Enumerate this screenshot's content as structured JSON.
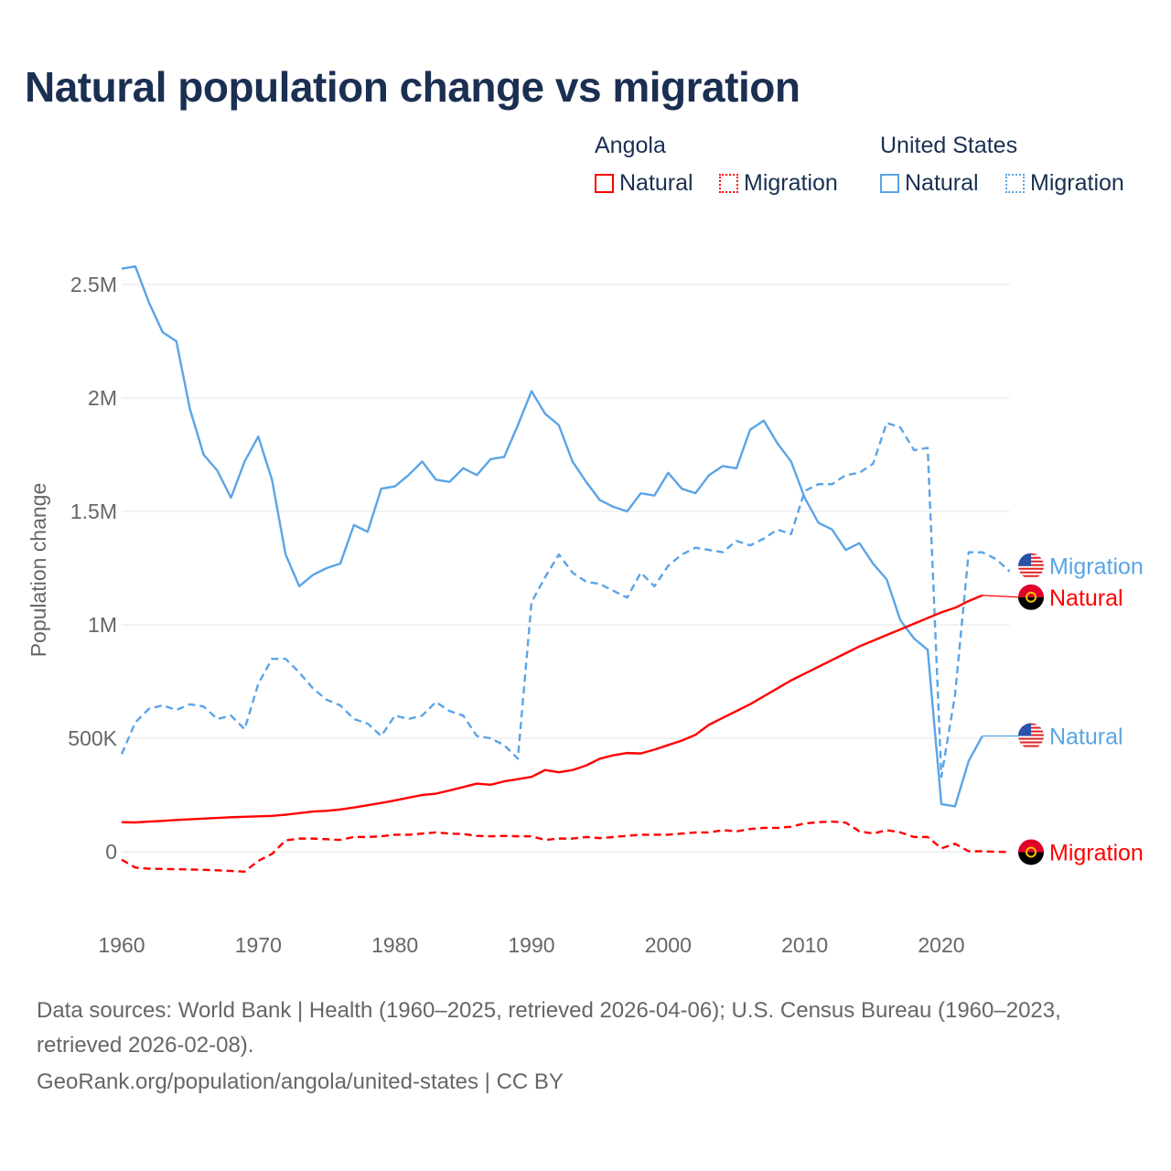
{
  "chart_data": {
    "type": "line",
    "title": "Natural population change vs migration",
    "xlabel": "",
    "ylabel": "Population change",
    "xlim": [
      1960,
      2025
    ],
    "ylim": [
      -0.15,
      2.6
    ],
    "y_unit": "millions",
    "grid": true,
    "legend_placement": "top-right",
    "x_ticks": [
      1960,
      1970,
      1980,
      1990,
      2000,
      2010,
      2020
    ],
    "x_tick_labels": [
      "1960",
      "1970",
      "1980",
      "1990",
      "2000",
      "2010",
      "2020"
    ],
    "y_ticks": [
      0,
      0.5,
      1,
      1.5,
      2,
      2.5
    ],
    "y_tick_labels": [
      "0",
      "500K",
      "1M",
      "1.5M",
      "2M",
      "2.5M"
    ],
    "legend": {
      "groups": [
        {
          "name": "Angola",
          "items": [
            "Natural",
            "Migration"
          ]
        },
        {
          "name": "United States",
          "items": [
            "Natural",
            "Migration"
          ]
        }
      ]
    },
    "series": [
      {
        "name": "United States Natural",
        "country": "United States",
        "kind": "Natural",
        "label": "Natural",
        "color": "#5ba4e6",
        "dashed": false,
        "flag": "us-flag",
        "start": 1960,
        "values": [
          2.57,
          2.58,
          2.42,
          2.29,
          2.25,
          1.95,
          1.75,
          1.68,
          1.56,
          1.72,
          1.83,
          1.64,
          1.31,
          1.17,
          1.22,
          1.25,
          1.27,
          1.44,
          1.41,
          1.6,
          1.61,
          1.66,
          1.72,
          1.64,
          1.63,
          1.69,
          1.66,
          1.73,
          1.74,
          1.88,
          2.03,
          1.93,
          1.88,
          1.72,
          1.63,
          1.55,
          1.52,
          1.5,
          1.58,
          1.57,
          1.67,
          1.6,
          1.58,
          1.66,
          1.7,
          1.69,
          1.86,
          1.9,
          1.8,
          1.72,
          1.56,
          1.45,
          1.42,
          1.33,
          1.36,
          1.27,
          1.2,
          1.02,
          0.94,
          0.89,
          0.21,
          0.2,
          0.4,
          0.51
        ]
      },
      {
        "name": "United States Migration",
        "country": "United States",
        "kind": "Migration",
        "label": "Migration",
        "color": "#5ba4e6",
        "dashed": true,
        "flag": "us-flag",
        "start": 1960,
        "values": [
          0.43,
          0.57,
          0.63,
          0.645,
          0.625,
          0.65,
          0.64,
          0.585,
          0.6,
          0.54,
          0.74,
          0.85,
          0.85,
          0.79,
          0.72,
          0.67,
          0.645,
          0.585,
          0.565,
          0.51,
          0.6,
          0.585,
          0.6,
          0.66,
          0.62,
          0.6,
          0.51,
          0.5,
          0.47,
          0.41,
          1.1,
          1.21,
          1.31,
          1.23,
          1.19,
          1.18,
          1.15,
          1.12,
          1.23,
          1.17,
          1.26,
          1.31,
          1.34,
          1.33,
          1.32,
          1.37,
          1.35,
          1.38,
          1.42,
          1.4,
          1.59,
          1.62,
          1.62,
          1.66,
          1.67,
          1.71,
          1.89,
          1.87,
          1.77,
          1.78,
          0.33,
          0.69,
          1.32,
          1.32,
          1.29,
          1.235
        ]
      },
      {
        "name": "Angola Natural",
        "country": "Angola",
        "kind": "Natural",
        "label": "Natural",
        "color": "#ff0000",
        "dashed": false,
        "flag": "angola-flag",
        "start": 1960,
        "values": [
          0.13,
          0.129,
          0.133,
          0.136,
          0.14,
          0.143,
          0.146,
          0.149,
          0.152,
          0.154,
          0.156,
          0.158,
          0.163,
          0.17,
          0.177,
          0.18,
          0.186,
          0.195,
          0.205,
          0.215,
          0.226,
          0.238,
          0.25,
          0.256,
          0.27,
          0.285,
          0.3,
          0.295,
          0.31,
          0.32,
          0.33,
          0.36,
          0.35,
          0.36,
          0.38,
          0.41,
          0.425,
          0.435,
          0.433,
          0.45,
          0.47,
          0.49,
          0.515,
          0.56,
          0.59,
          0.62,
          0.65,
          0.685,
          0.72,
          0.755,
          0.785,
          0.815,
          0.845,
          0.875,
          0.905,
          0.93,
          0.955,
          0.98,
          1.005,
          1.03,
          1.055,
          1.075,
          1.105,
          1.13
        ]
      },
      {
        "name": "Angola Migration",
        "country": "Angola",
        "kind": "Migration",
        "label": "Migration",
        "color": "#ff0000",
        "dashed": true,
        "flag": "angola-flag",
        "start": 1960,
        "values": [
          -0.035,
          -0.07,
          -0.075,
          -0.076,
          -0.077,
          -0.078,
          -0.08,
          -0.082,
          -0.085,
          -0.088,
          -0.04,
          -0.01,
          0.05,
          0.058,
          0.058,
          0.055,
          0.052,
          0.065,
          0.065,
          0.068,
          0.075,
          0.075,
          0.08,
          0.085,
          0.08,
          0.078,
          0.07,
          0.068,
          0.07,
          0.068,
          0.068,
          0.052,
          0.058,
          0.058,
          0.065,
          0.06,
          0.065,
          0.07,
          0.075,
          0.075,
          0.075,
          0.08,
          0.085,
          0.085,
          0.095,
          0.09,
          0.1,
          0.105,
          0.105,
          0.11,
          0.125,
          0.13,
          0.133,
          0.128,
          0.09,
          0.08,
          0.095,
          0.085,
          0.065,
          0.065,
          0.015,
          0.035,
          0.002,
          0.002,
          0.0,
          -0.002
        ]
      }
    ]
  },
  "footer": {
    "sources_line1": "Data sources: World Bank | Health (1960–2025, retrieved 2026-04-06); U.S. Census Bureau (1960–2023,",
    "sources_line2": "retrieved 2026-02-08).",
    "credit": "GeoRank.org/population/angola/united-states | CC BY"
  }
}
